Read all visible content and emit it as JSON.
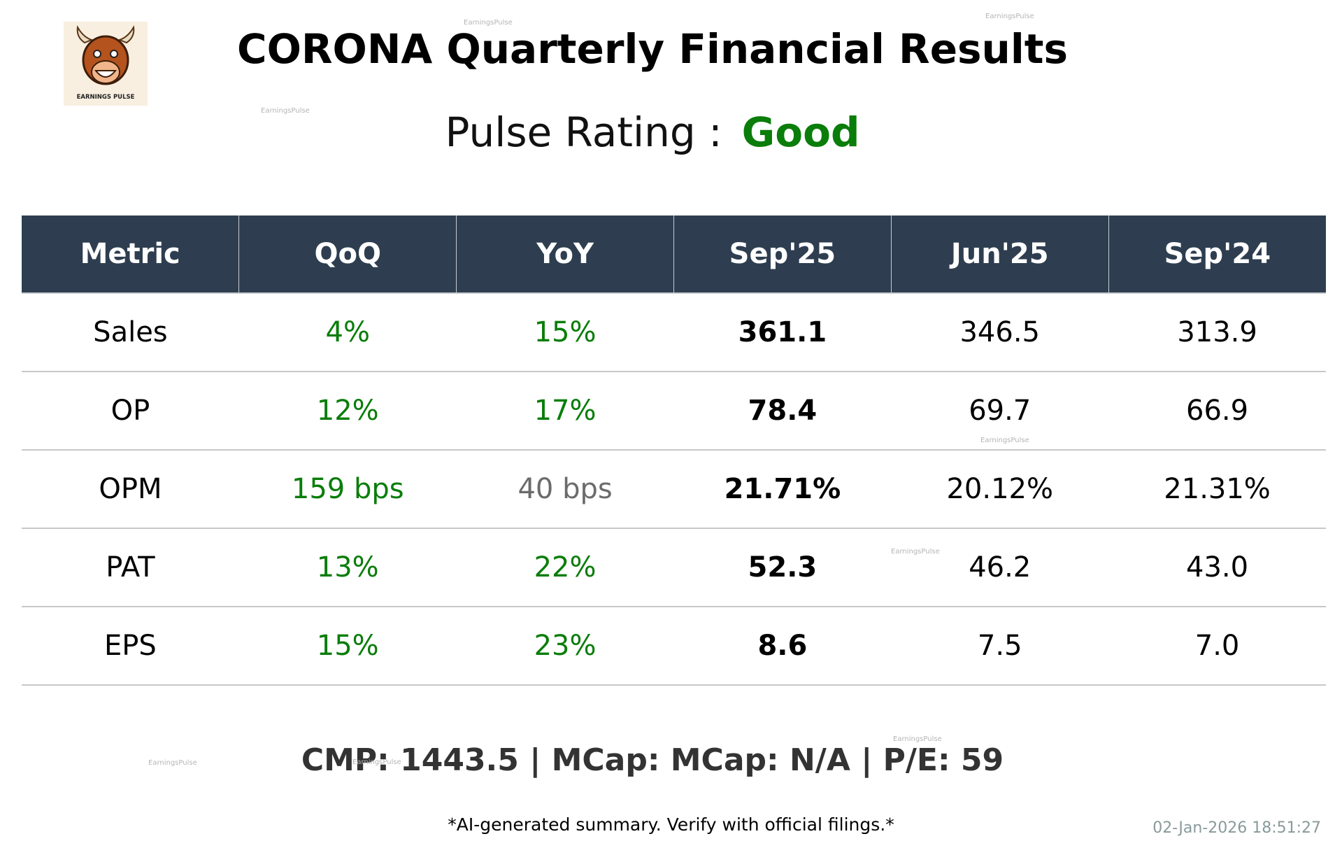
{
  "header": {
    "title": "CORONA Quarterly Financial Results",
    "logo_text": "EARNINGS PULSE",
    "rating_label": "Pulse Rating :",
    "rating_value": "Good"
  },
  "watermark": "EarningsPulse",
  "table": {
    "columns": [
      "Metric",
      "QoQ",
      "YoY",
      "Sep'25",
      "Jun'25",
      "Sep'24"
    ],
    "rows": [
      [
        "Sales",
        "4%",
        "15%",
        "361.1",
        "346.5",
        "313.9"
      ],
      [
        "OP",
        "12%",
        "17%",
        "78.4",
        "69.7",
        "66.9"
      ],
      [
        "OPM",
        "159 bps",
        "40 bps",
        "21.71%",
        "20.12%",
        "21.31%"
      ],
      [
        "PAT",
        "13%",
        "22%",
        "52.3",
        "46.2",
        "43.0"
      ],
      [
        "EPS",
        "15%",
        "23%",
        "8.6",
        "7.5",
        "7.0"
      ]
    ]
  },
  "footer": {
    "summary": "CMP: 1443.5 | MCap: MCap: N/A | P/E: 59",
    "disclaimer": "*AI-generated summary. Verify with official filings.*",
    "timestamp": "02-Jan-2026 18:51:27"
  }
}
